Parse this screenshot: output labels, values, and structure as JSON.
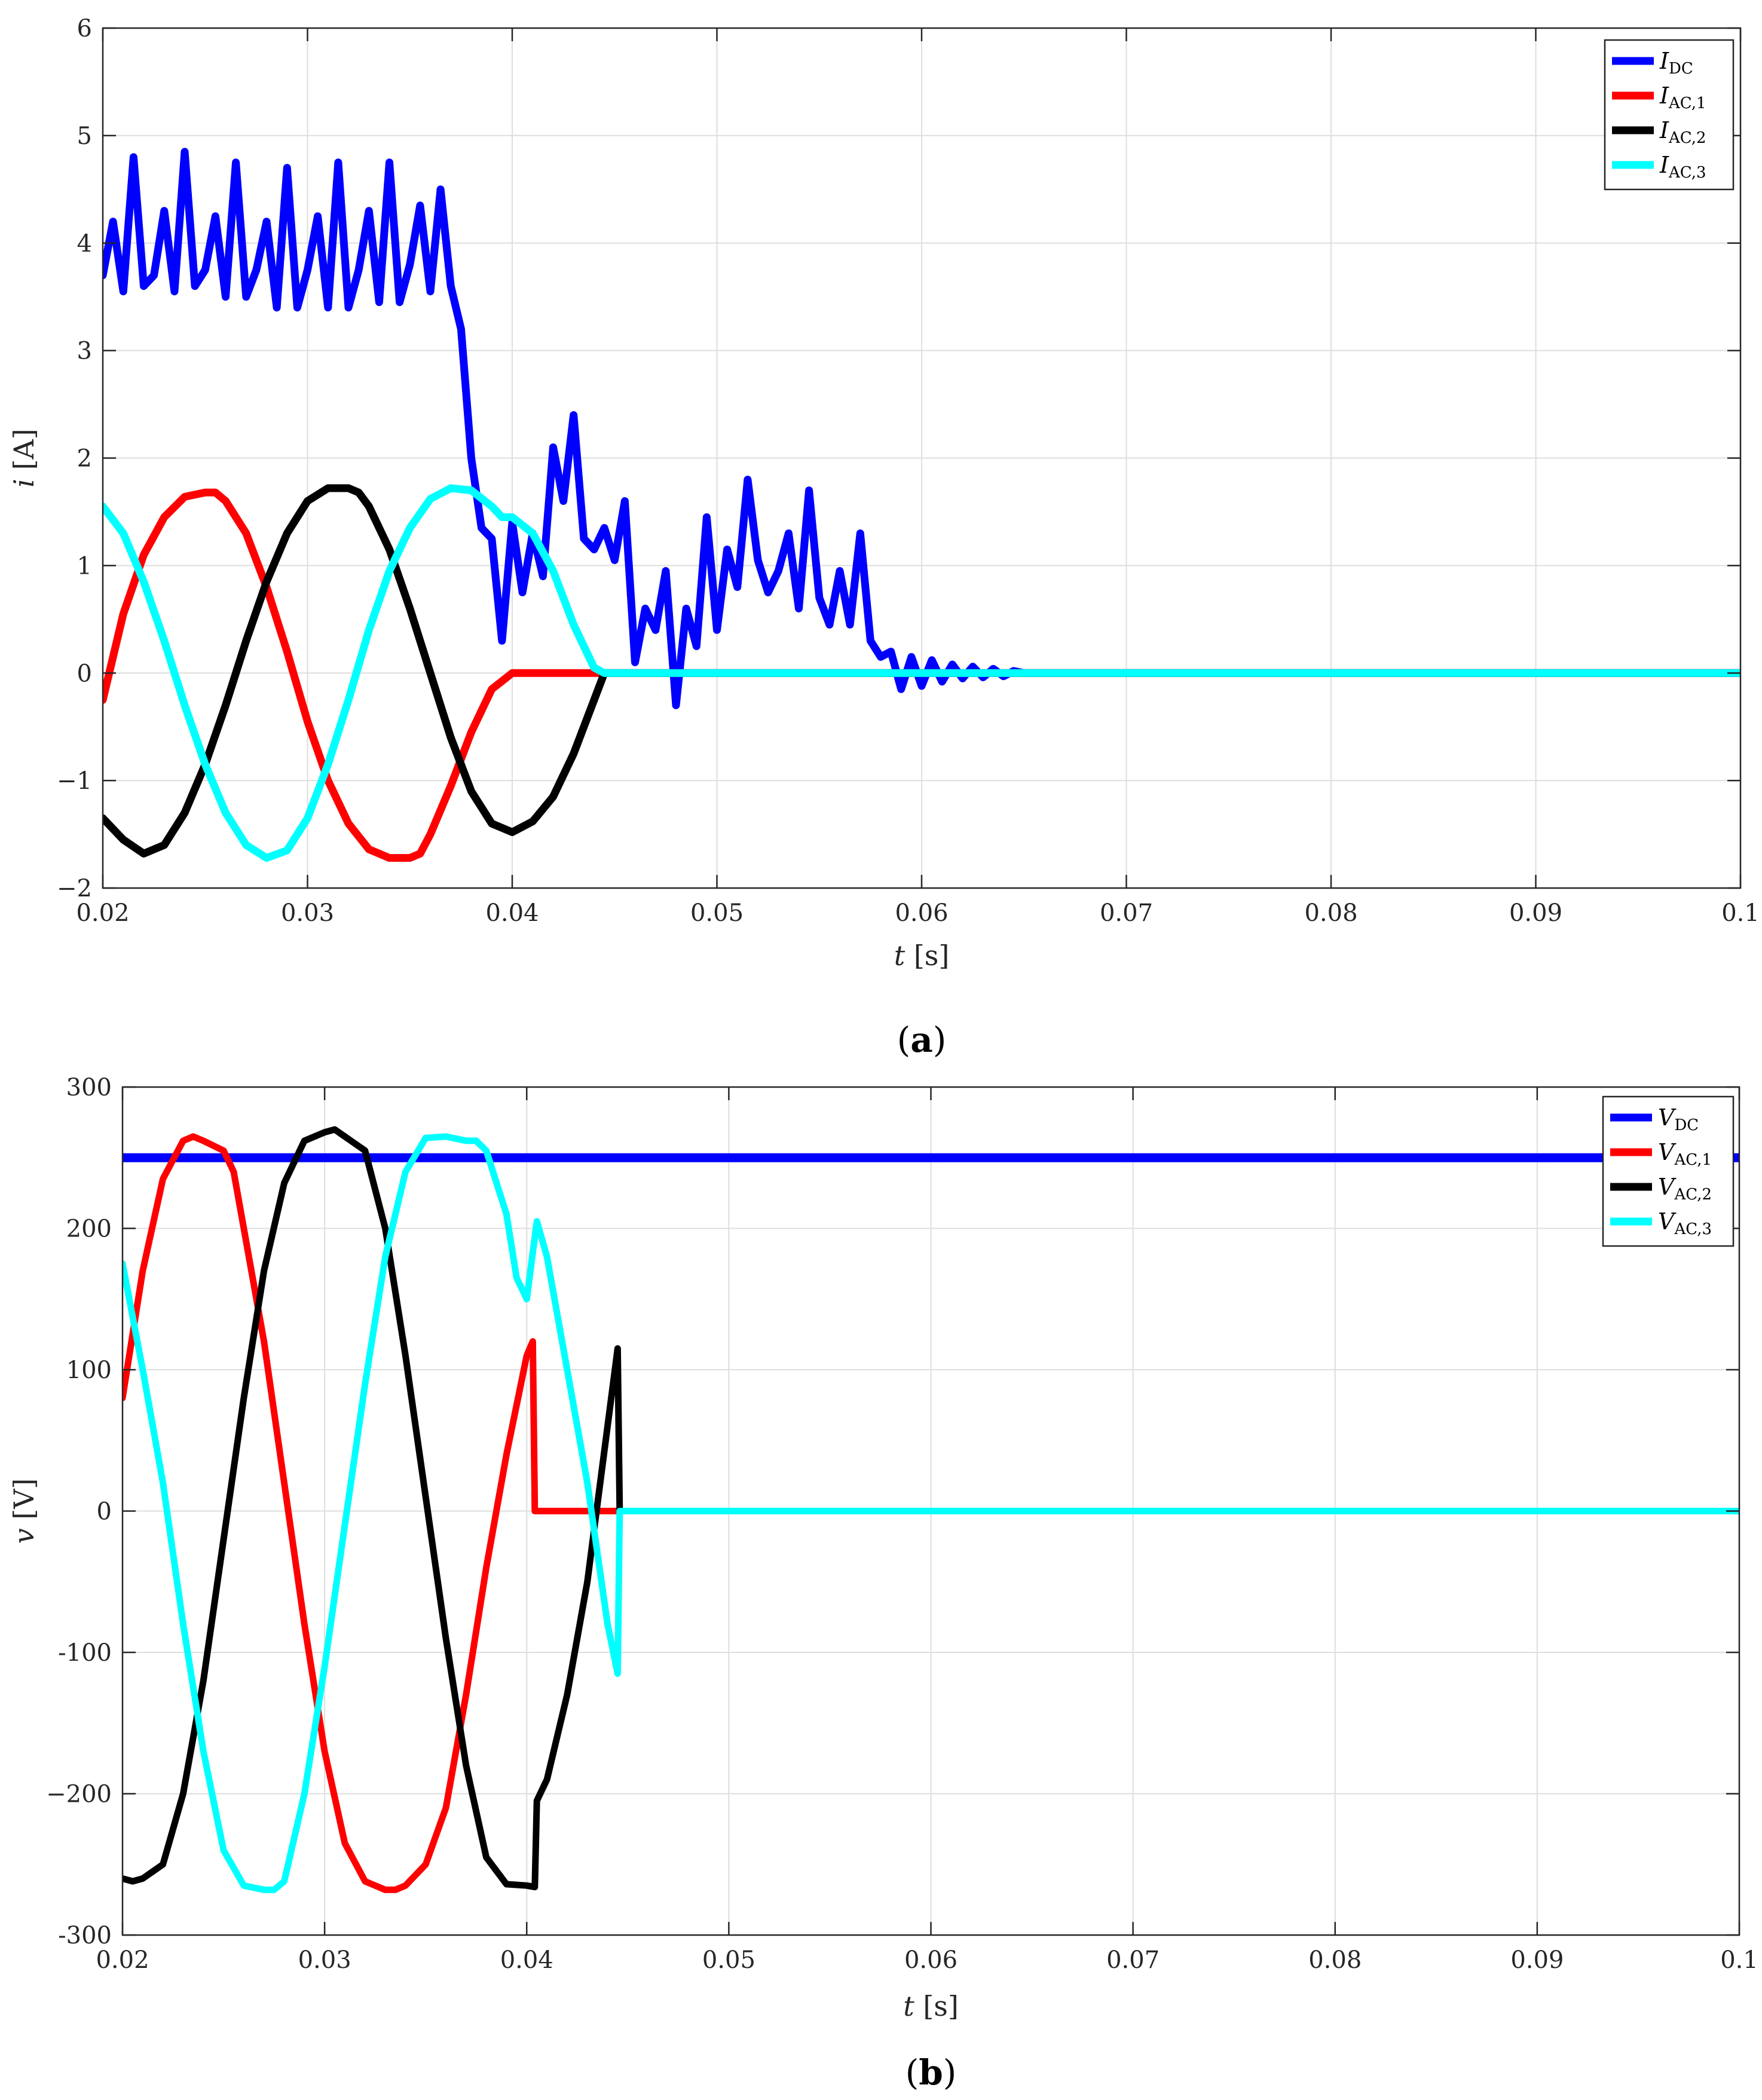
{
  "chart_data": [
    {
      "type": "line",
      "caption_label": "a",
      "xlabel_symbol": "t",
      "xlabel_unit": "[s]",
      "ylabel_symbol": "i",
      "ylabel_unit": "[A]",
      "xlim": [
        0.02,
        0.1
      ],
      "ylim": [
        -2,
        6
      ],
      "xticks": [
        "0.02",
        "0.03",
        "0.04",
        "0.05",
        "0.06",
        "0.07",
        "0.08",
        "0.09",
        "0.1"
      ],
      "yticks": [
        "−2",
        "−1",
        "0",
        "1",
        "2",
        "3",
        "4",
        "5",
        "6"
      ],
      "grid": true,
      "legend_position": "top-right",
      "series": [
        {
          "name": "I",
          "sub": "DC",
          "color": "#0000ff",
          "width": 13,
          "x": [
            0.02,
            0.0205,
            0.021,
            0.0215,
            0.022,
            0.0225,
            0.023,
            0.0235,
            0.024,
            0.0245,
            0.025,
            0.0255,
            0.026,
            0.0265,
            0.027,
            0.0275,
            0.028,
            0.0285,
            0.029,
            0.0295,
            0.03,
            0.0305,
            0.031,
            0.0315,
            0.032,
            0.0325,
            0.033,
            0.0335,
            0.034,
            0.0345,
            0.035,
            0.0355,
            0.036,
            0.0365,
            0.037,
            0.0375,
            0.038,
            0.0385,
            0.039,
            0.0395,
            0.04,
            0.0405,
            0.041,
            0.0415,
            0.042,
            0.0425,
            0.043,
            0.0435,
            0.044,
            0.0445,
            0.045,
            0.0455,
            0.046,
            0.0465,
            0.047,
            0.0475,
            0.048,
            0.0485,
            0.049,
            0.0495,
            0.05,
            0.0505,
            0.051,
            0.0515,
            0.052,
            0.0525,
            0.053,
            0.0535,
            0.054,
            0.0545,
            0.055,
            0.0555,
            0.056,
            0.0565,
            0.057,
            0.0575,
            0.058,
            0.0585,
            0.059,
            0.0595,
            0.06,
            0.0605,
            0.061,
            0.0615,
            0.062,
            0.0625,
            0.063,
            0.0635,
            0.064,
            0.0645,
            0.065,
            0.0655,
            0.066,
            0.0665,
            0.067,
            0.0675,
            0.068,
            0.0685,
            0.069,
            0.0695,
            0.07,
            0.0705,
            0.071,
            0.0715,
            0.072,
            0.0725,
            0.073,
            0.0735,
            0.074,
            0.0745,
            0.075,
            0.0755,
            0.076,
            0.0765,
            0.077,
            0.0775,
            0.078,
            0.079,
            0.08,
            0.082,
            0.085,
            0.09,
            0.1
          ],
          "y": [
            3.7,
            4.2,
            3.55,
            4.8,
            3.6,
            3.7,
            4.3,
            3.55,
            4.85,
            3.6,
            3.75,
            4.25,
            3.5,
            4.75,
            3.5,
            3.75,
            4.2,
            3.4,
            4.7,
            3.4,
            3.75,
            4.25,
            3.4,
            4.75,
            3.4,
            3.75,
            4.3,
            3.45,
            4.75,
            3.45,
            3.8,
            4.35,
            3.55,
            4.5,
            3.6,
            3.2,
            2.0,
            1.35,
            1.25,
            0.3,
            1.4,
            0.75,
            1.3,
            0.9,
            2.1,
            1.6,
            2.4,
            1.25,
            1.15,
            1.35,
            1.05,
            1.6,
            0.1,
            0.6,
            0.4,
            0.95,
            -0.3,
            0.6,
            0.25,
            1.45,
            0.4,
            1.15,
            0.8,
            1.8,
            1.05,
            0.75,
            0.95,
            1.3,
            0.6,
            1.7,
            0.7,
            0.45,
            0.95,
            0.45,
            1.3,
            0.3,
            0.15,
            0.2,
            -0.15,
            0.15,
            -0.12,
            0.12,
            -0.08,
            0.08,
            -0.05,
            0.06,
            -0.04,
            0.04,
            -0.03,
            0.02,
            0,
            0,
            0,
            0,
            0,
            0,
            0,
            0,
            0,
            0,
            0,
            0,
            0,
            0,
            0,
            0,
            0,
            0,
            0,
            0,
            0,
            0,
            0,
            0,
            0,
            0,
            0,
            0,
            0,
            0,
            0,
            0,
            0
          ]
        },
        {
          "name": "I",
          "sub": "AC,1",
          "color": "#ff0000",
          "width": 13,
          "x": [
            0.02,
            0.021,
            0.022,
            0.023,
            0.024,
            0.025,
            0.0255,
            0.026,
            0.027,
            0.028,
            0.029,
            0.03,
            0.031,
            0.032,
            0.033,
            0.034,
            0.035,
            0.0355,
            0.036,
            0.037,
            0.038,
            0.039,
            0.04,
            0.0405,
            0.041,
            0.042,
            0.043,
            0.044,
            0.045,
            0.1
          ],
          "y": [
            -0.25,
            0.55,
            1.1,
            1.45,
            1.64,
            1.68,
            1.68,
            1.6,
            1.3,
            0.8,
            0.2,
            -0.45,
            -1.0,
            -1.4,
            -1.64,
            -1.72,
            -1.72,
            -1.68,
            -1.5,
            -1.05,
            -0.55,
            -0.15,
            0.0,
            0.0,
            0.0,
            0.0,
            0.0,
            0.0,
            0.0,
            0.0
          ]
        },
        {
          "name": "I",
          "sub": "AC,2",
          "color": "#000000",
          "width": 13,
          "x": [
            0.02,
            0.021,
            0.022,
            0.023,
            0.024,
            0.025,
            0.026,
            0.027,
            0.028,
            0.029,
            0.03,
            0.031,
            0.032,
            0.0325,
            0.033,
            0.034,
            0.035,
            0.036,
            0.037,
            0.038,
            0.039,
            0.04,
            0.041,
            0.042,
            0.043,
            0.044,
            0.0445,
            0.045,
            0.1
          ],
          "y": [
            -1.35,
            -1.55,
            -1.68,
            -1.6,
            -1.3,
            -0.85,
            -0.3,
            0.3,
            0.85,
            1.3,
            1.6,
            1.72,
            1.72,
            1.68,
            1.55,
            1.15,
            0.6,
            0.0,
            -0.6,
            -1.1,
            -1.4,
            -1.48,
            -1.38,
            -1.15,
            -0.75,
            -0.25,
            0.0,
            0.0,
            0.0
          ]
        },
        {
          "name": "I",
          "sub": "AC,3",
          "color": "#00ffff",
          "width": 13,
          "x": [
            0.02,
            0.021,
            0.022,
            0.023,
            0.024,
            0.025,
            0.026,
            0.027,
            0.028,
            0.029,
            0.03,
            0.031,
            0.032,
            0.033,
            0.034,
            0.035,
            0.036,
            0.037,
            0.038,
            0.039,
            0.0395,
            0.04,
            0.041,
            0.042,
            0.043,
            0.044,
            0.0445,
            0.045,
            0.1
          ],
          "y": [
            1.55,
            1.3,
            0.85,
            0.3,
            -0.3,
            -0.85,
            -1.3,
            -1.6,
            -1.72,
            -1.65,
            -1.35,
            -0.85,
            -0.25,
            0.4,
            0.95,
            1.35,
            1.62,
            1.72,
            1.7,
            1.55,
            1.45,
            1.45,
            1.3,
            0.95,
            0.45,
            0.05,
            0.0,
            0.0,
            0.0
          ]
        }
      ]
    },
    {
      "type": "line",
      "caption_label": "b",
      "xlabel_symbol": "t",
      "xlabel_unit": "[s]",
      "ylabel_symbol": "v",
      "ylabel_unit": "[V]",
      "xlim": [
        0.02,
        0.1
      ],
      "ylim": [
        -300,
        300
      ],
      "xticks": [
        "0.02",
        "0.03",
        "0.04",
        "0.05",
        "0.06",
        "0.07",
        "0.08",
        "0.09",
        "0.1"
      ],
      "yticks": [
        "-300",
        "−200",
        "-100",
        "0",
        "100",
        "200",
        "300"
      ],
      "grid": true,
      "legend_position": "top-right",
      "series": [
        {
          "name": "V",
          "sub": "DC",
          "color": "#0000ff",
          "width": 15,
          "x": [
            0.02,
            0.1
          ],
          "y": [
            250,
            250
          ]
        },
        {
          "name": "V",
          "sub": "AC,1",
          "color": "#ff0000",
          "width": 11,
          "x": [
            0.02,
            0.021,
            0.022,
            0.023,
            0.0235,
            0.024,
            0.025,
            0.0255,
            0.026,
            0.027,
            0.028,
            0.029,
            0.03,
            0.031,
            0.032,
            0.033,
            0.0335,
            0.034,
            0.035,
            0.036,
            0.037,
            0.038,
            0.039,
            0.04,
            0.0403,
            0.0404,
            0.041,
            0.042,
            0.043,
            0.044,
            0.045,
            0.1
          ],
          "y": [
            80,
            170,
            235,
            262,
            265,
            262,
            255,
            240,
            200,
            120,
            20,
            -80,
            -170,
            -235,
            -262,
            -268,
            -268,
            -265,
            -250,
            -210,
            -130,
            -40,
            40,
            110,
            120,
            0,
            0,
            0,
            0,
            0,
            0,
            0
          ]
        },
        {
          "name": "V",
          "sub": "AC,2",
          "color": "#000000",
          "width": 11,
          "x": [
            0.02,
            0.0205,
            0.021,
            0.022,
            0.023,
            0.024,
            0.025,
            0.026,
            0.027,
            0.028,
            0.029,
            0.03,
            0.0305,
            0.031,
            0.032,
            0.033,
            0.034,
            0.035,
            0.036,
            0.037,
            0.038,
            0.039,
            0.04,
            0.0404,
            0.0405,
            0.041,
            0.042,
            0.043,
            0.044,
            0.0445,
            0.0446,
            0.1
          ],
          "y": [
            -260,
            -262,
            -260,
            -250,
            -200,
            -120,
            -20,
            80,
            170,
            232,
            262,
            268,
            270,
            265,
            255,
            200,
            110,
            10,
            -90,
            -180,
            -245,
            -264,
            -265,
            -266,
            -205,
            -190,
            -130,
            -50,
            60,
            115,
            0,
            0
          ]
        },
        {
          "name": "V",
          "sub": "AC,3",
          "color": "#00ffff",
          "width": 11,
          "x": [
            0.02,
            0.021,
            0.022,
            0.023,
            0.024,
            0.025,
            0.026,
            0.027,
            0.0275,
            0.028,
            0.029,
            0.03,
            0.031,
            0.032,
            0.033,
            0.034,
            0.035,
            0.036,
            0.037,
            0.0375,
            0.038,
            0.039,
            0.0395,
            0.04,
            0.0405,
            0.041,
            0.042,
            0.043,
            0.044,
            0.0445,
            0.0446,
            0.1
          ],
          "y": [
            175,
            100,
            20,
            -80,
            -170,
            -240,
            -265,
            -268,
            -268,
            -262,
            -200,
            -110,
            -10,
            90,
            180,
            240,
            264,
            265,
            262,
            262,
            255,
            210,
            165,
            150,
            205,
            180,
            100,
            20,
            -80,
            -115,
            0,
            0
          ]
        }
      ]
    }
  ]
}
